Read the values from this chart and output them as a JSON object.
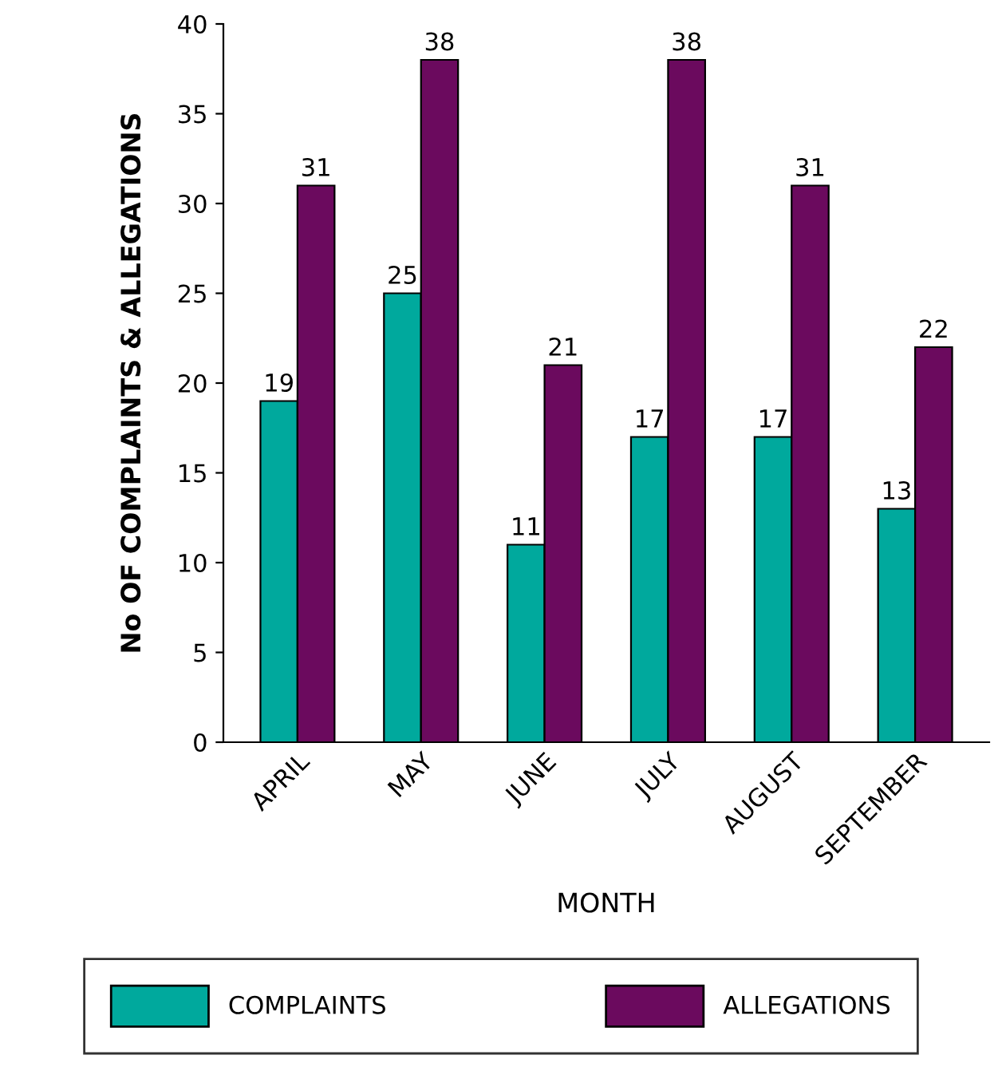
{
  "chart_data": {
    "type": "bar",
    "xlabel": "MONTH",
    "ylabel": "No OF COMPLAINTS & ALLEGATIONS",
    "categories": [
      "APRIL",
      "MAY",
      "JUNE",
      "JULY",
      "AUGUST",
      "SEPTEMBER"
    ],
    "series": [
      {
        "name": "COMPLAINTS",
        "color": "#00a99d",
        "values": [
          19,
          25,
          11,
          17,
          17,
          13
        ]
      },
      {
        "name": "ALLEGATIONS",
        "color": "#6b0a5e",
        "values": [
          31,
          38,
          21,
          38,
          31,
          22
        ]
      }
    ],
    "ylim": [
      0,
      40
    ],
    "yticks": [
      0,
      5,
      10,
      15,
      20,
      25,
      30,
      35,
      40
    ],
    "grid": false,
    "legend": "bottom",
    "data_labels": true
  }
}
